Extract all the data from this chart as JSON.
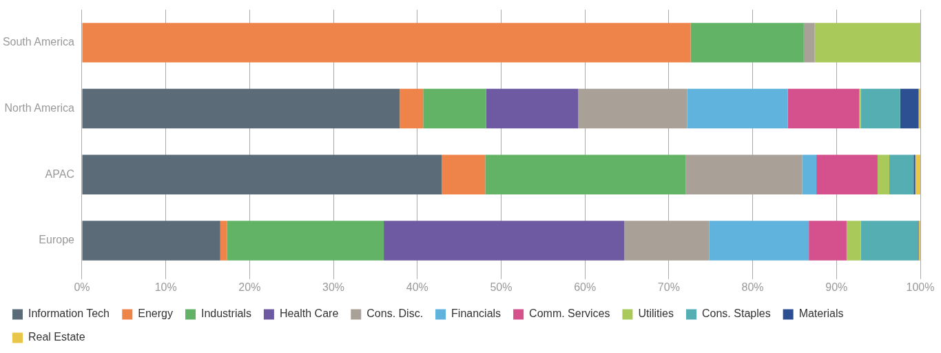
{
  "chart_data": {
    "type": "bar",
    "orientation": "horizontal",
    "stacked": true,
    "categories": [
      "South America",
      "North America",
      "APAC",
      "Europe"
    ],
    "series": [
      {
        "name": "Information Tech",
        "color": "#5b6b78",
        "values": [
          0,
          37.9,
          42.9,
          16.5
        ]
      },
      {
        "name": "Energy",
        "color": "#ef844b",
        "values": [
          72.6,
          2.8,
          5.2,
          0.8
        ]
      },
      {
        "name": "Industrials",
        "color": "#62b366",
        "values": [
          13.5,
          7.5,
          23.9,
          18.7
        ]
      },
      {
        "name": "Health Care",
        "color": "#6e5aa2",
        "values": [
          0,
          11.0,
          0,
          28.7
        ]
      },
      {
        "name": "Cons. Disc.",
        "color": "#a9a197",
        "values": [
          1.3,
          13.0,
          13.9,
          10.1
        ]
      },
      {
        "name": "Financials",
        "color": "#5fb3dc",
        "values": [
          0,
          12.0,
          1.7,
          11.9
        ]
      },
      {
        "name": "Comm. Services",
        "color": "#d4518e",
        "values": [
          0,
          8.5,
          7.3,
          4.5
        ]
      },
      {
        "name": "Utilities",
        "color": "#a9c95a",
        "values": [
          12.6,
          0.2,
          1.4,
          1.7
        ]
      },
      {
        "name": "Cons. Staples",
        "color": "#55aeb1",
        "values": [
          0,
          4.7,
          2.9,
          6.8
        ]
      },
      {
        "name": "Materials",
        "color": "#2d5092",
        "values": [
          0,
          2.2,
          0.2,
          0.1
        ]
      },
      {
        "name": "Real Estate",
        "color": "#e8c64a",
        "values": [
          0,
          0.2,
          0.6,
          0.2
        ]
      }
    ],
    "xlim": [
      0,
      100
    ],
    "xticks": [
      {
        "value": 0,
        "label": "0%"
      },
      {
        "value": 10,
        "label": "10%"
      },
      {
        "value": 20,
        "label": "20%"
      },
      {
        "value": 30,
        "label": "30%"
      },
      {
        "value": 40,
        "label": "40%"
      },
      {
        "value": 50,
        "label": "50%"
      },
      {
        "value": 60,
        "label": "60%"
      },
      {
        "value": 70,
        "label": "70%"
      },
      {
        "value": 80,
        "label": "80%"
      },
      {
        "value": 90,
        "label": "90%"
      },
      {
        "value": 100,
        "label": "100%"
      }
    ],
    "grid": "x",
    "legend": "bottom"
  }
}
